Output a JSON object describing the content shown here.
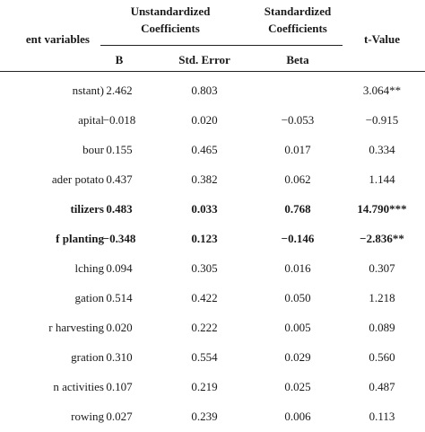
{
  "header": {
    "variables": "ent variables",
    "unstd_line1": "Unstandardized",
    "unstd_line2": "Coefficients",
    "std_line1": "Standardized",
    "std_line2": "Coefficients",
    "tvalue": "t-Value",
    "sub_b": "B",
    "sub_se": "Std. Error",
    "sub_beta": "Beta"
  },
  "rows": [
    {
      "var": "nstant)",
      "b": "2.462",
      "se": "0.803",
      "beta": "",
      "t": "3.064**",
      "bold": false
    },
    {
      "var": "apital",
      "b": "−0.018",
      "se": "0.020",
      "beta": "−0.053",
      "t": "−0.915",
      "bold": false
    },
    {
      "var": "bour",
      "b": "0.155",
      "se": "0.465",
      "beta": "0.017",
      "t": "0.334",
      "bold": false
    },
    {
      "var": "ader potato",
      "b": "0.437",
      "se": "0.382",
      "beta": "0.062",
      "t": "1.144",
      "bold": false
    },
    {
      "var": "tilizers",
      "b": "0.483",
      "se": "0.033",
      "beta": "0.768",
      "t": "14.790***",
      "bold": true
    },
    {
      "var": "f planting",
      "b": "−0.348",
      "se": "0.123",
      "beta": "−0.146",
      "t": "−2.836**",
      "bold": true
    },
    {
      "var": "lching",
      "b": "0.094",
      "se": "0.305",
      "beta": "0.016",
      "t": "0.307",
      "bold": false
    },
    {
      "var": "gation",
      "b": "0.514",
      "se": "0.422",
      "beta": "0.050",
      "t": "1.218",
      "bold": false
    },
    {
      "var": "r harvesting",
      "b": "0.020",
      "se": "0.222",
      "beta": "0.005",
      "t": "0.089",
      "bold": false
    },
    {
      "var": "gration",
      "b": "0.310",
      "se": "0.554",
      "beta": "0.029",
      "t": "0.560",
      "bold": false
    },
    {
      "var": "n activities",
      "b": "0.107",
      "se": "0.219",
      "beta": "0.025",
      "t": "0.487",
      "bold": false
    },
    {
      "var": "rowing",
      "b": "0.027",
      "se": "0.239",
      "beta": "0.006",
      "t": "0.113",
      "bold": false
    }
  ]
}
